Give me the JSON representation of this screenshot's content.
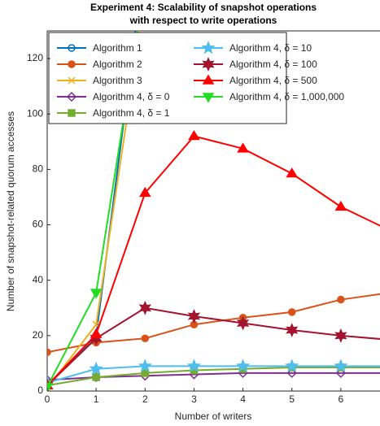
{
  "chart_data": {
    "type": "line",
    "title": [
      "Experiment 4: Scalability of snapshot operations",
      "with respect to write operations"
    ],
    "x_label": "Number of writers",
    "y_label": "Number of snapshot-related quorum accesses",
    "x": [
      0,
      1,
      2,
      3,
      4,
      5,
      6,
      7
    ],
    "xlim": [
      0,
      6.8
    ],
    "xticks": [
      0,
      1,
      2,
      3,
      4,
      5,
      6
    ],
    "ylim": [
      0,
      130
    ],
    "yticks": [
      0,
      20,
      40,
      60,
      80,
      100,
      120
    ],
    "grid": false,
    "legend_corner": "upper left",
    "series": [
      {
        "name": "Algorithm 1",
        "color": "#0072BD",
        "marker": "circle",
        "values": [
          2,
          20,
          157,
          null,
          null,
          null,
          null,
          null
        ]
      },
      {
        "name": "Algorithm 2",
        "color": "#D95319",
        "marker": "dot",
        "values": [
          14,
          17.5,
          19,
          24,
          26.5,
          28.5,
          33,
          35.5
        ]
      },
      {
        "name": "Algorithm 3",
        "color": "#EDB120",
        "marker": "x",
        "values": [
          1,
          24,
          142,
          null,
          null,
          null,
          null,
          null
        ]
      },
      {
        "name": "Algorithm 4, δ = 0",
        "color": "#7E2F8E",
        "marker": "diamond",
        "values": [
          4,
          5,
          5.5,
          6,
          6.5,
          6.5,
          6.5,
          6.5
        ]
      },
      {
        "name": "Algorithm 4, δ = 1",
        "color": "#77AC30",
        "marker": "square",
        "values": [
          2,
          5,
          6.5,
          7.5,
          8,
          8.5,
          8.5,
          8.5
        ]
      },
      {
        "name": "Algorithm 4, δ = 10",
        "color": "#4DBEEE",
        "marker": "star",
        "values": [
          3,
          8,
          9,
          9,
          9,
          9,
          9,
          9
        ]
      },
      {
        "name": "Algorithm 4, δ = 100",
        "color": "#A2142F",
        "marker": "hexagram",
        "values": [
          2,
          19,
          30,
          27,
          24.5,
          22,
          20,
          18.5
        ]
      },
      {
        "name": "Algorithm 4, δ = 500",
        "color": "#FF0000",
        "marker": "triangle",
        "values": [
          2,
          20.5,
          71.5,
          92,
          87.5,
          78.5,
          66.5,
          58
        ]
      },
      {
        "name": "Algorithm 4, δ = 1,000,000",
        "color": "#22DD22",
        "marker": "triangle-down",
        "values": [
          1.5,
          35.5,
          147,
          null,
          null,
          null,
          null,
          null
        ]
      }
    ]
  }
}
